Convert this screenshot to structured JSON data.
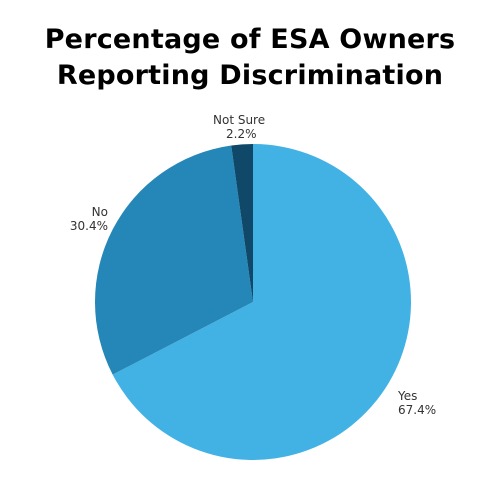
{
  "title": {
    "line1": "Percentage of ESA Owners",
    "line2": "Reporting Discrimination"
  },
  "chart_data": {
    "type": "pie",
    "title": "Percentage of ESA Owners Reporting Discrimination",
    "start": "12 o'clock, clockwise",
    "slices": [
      {
        "label": "Yes",
        "value": 67.4,
        "display": "67.4%",
        "color": "#42b2e5"
      },
      {
        "label": "No",
        "value": 30.4,
        "display": "30.4%",
        "color": "#2587b8"
      },
      {
        "label": "Not Sure",
        "value": 2.2,
        "display": "2.2%",
        "color": "#0f4868"
      }
    ]
  }
}
